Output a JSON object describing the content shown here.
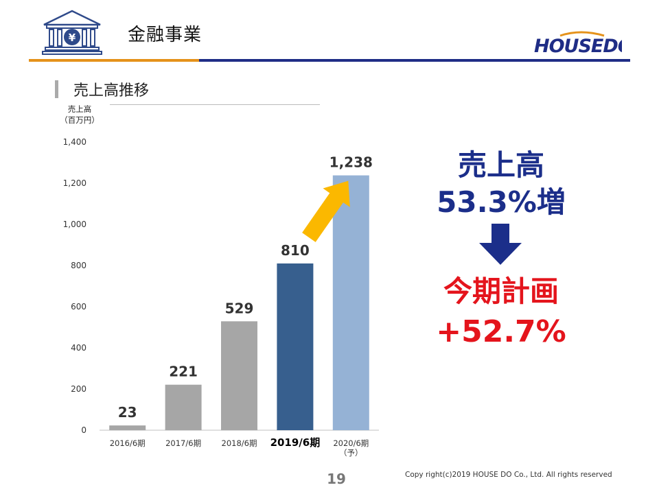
{
  "header": {
    "title": "金融事業",
    "icon": "bank-yen-icon",
    "logo_text": "HOUSEDO",
    "colors": {
      "orange": "#e5921a",
      "navy": "#1f2d86"
    }
  },
  "section": {
    "title": "売上高推移"
  },
  "chart_data": {
    "type": "bar",
    "ylabel_line1": "売上高",
    "ylabel_line2": "（百万円）",
    "categories": [
      "2016/6期",
      "2017/6期",
      "2018/6期",
      "2019/6期",
      "2020/6期\n（予）"
    ],
    "values": [
      23,
      221,
      529,
      810,
      1238
    ],
    "data_labels": [
      "23",
      "221",
      "529",
      "810",
      "1,238"
    ],
    "ylim": [
      0,
      1400
    ],
    "yticks": [
      0,
      200,
      400,
      600,
      800,
      1000,
      1200,
      1400
    ],
    "ytick_labels": [
      "0",
      "200",
      "400",
      "600",
      "800",
      "1,000",
      "1,200",
      "1,400"
    ],
    "bar_colors": [
      "#a6a6a6",
      "#a6a6a6",
      "#a6a6a6",
      "#375f8e",
      "#95b2d5"
    ],
    "highlight_index": 3,
    "grid": false,
    "arrow_color": "#fbb800"
  },
  "callout": {
    "line1": "売上高",
    "line2": "53.3%増",
    "line3": "今期計画",
    "line4": "+52.7%",
    "colors": {
      "blue": "#1b2e8a",
      "red": "#e4141c"
    }
  },
  "footer": {
    "page_number": "19",
    "copyright": "Copy right(c)2019 HOUSE DO Co., Ltd. All rights reserved"
  }
}
